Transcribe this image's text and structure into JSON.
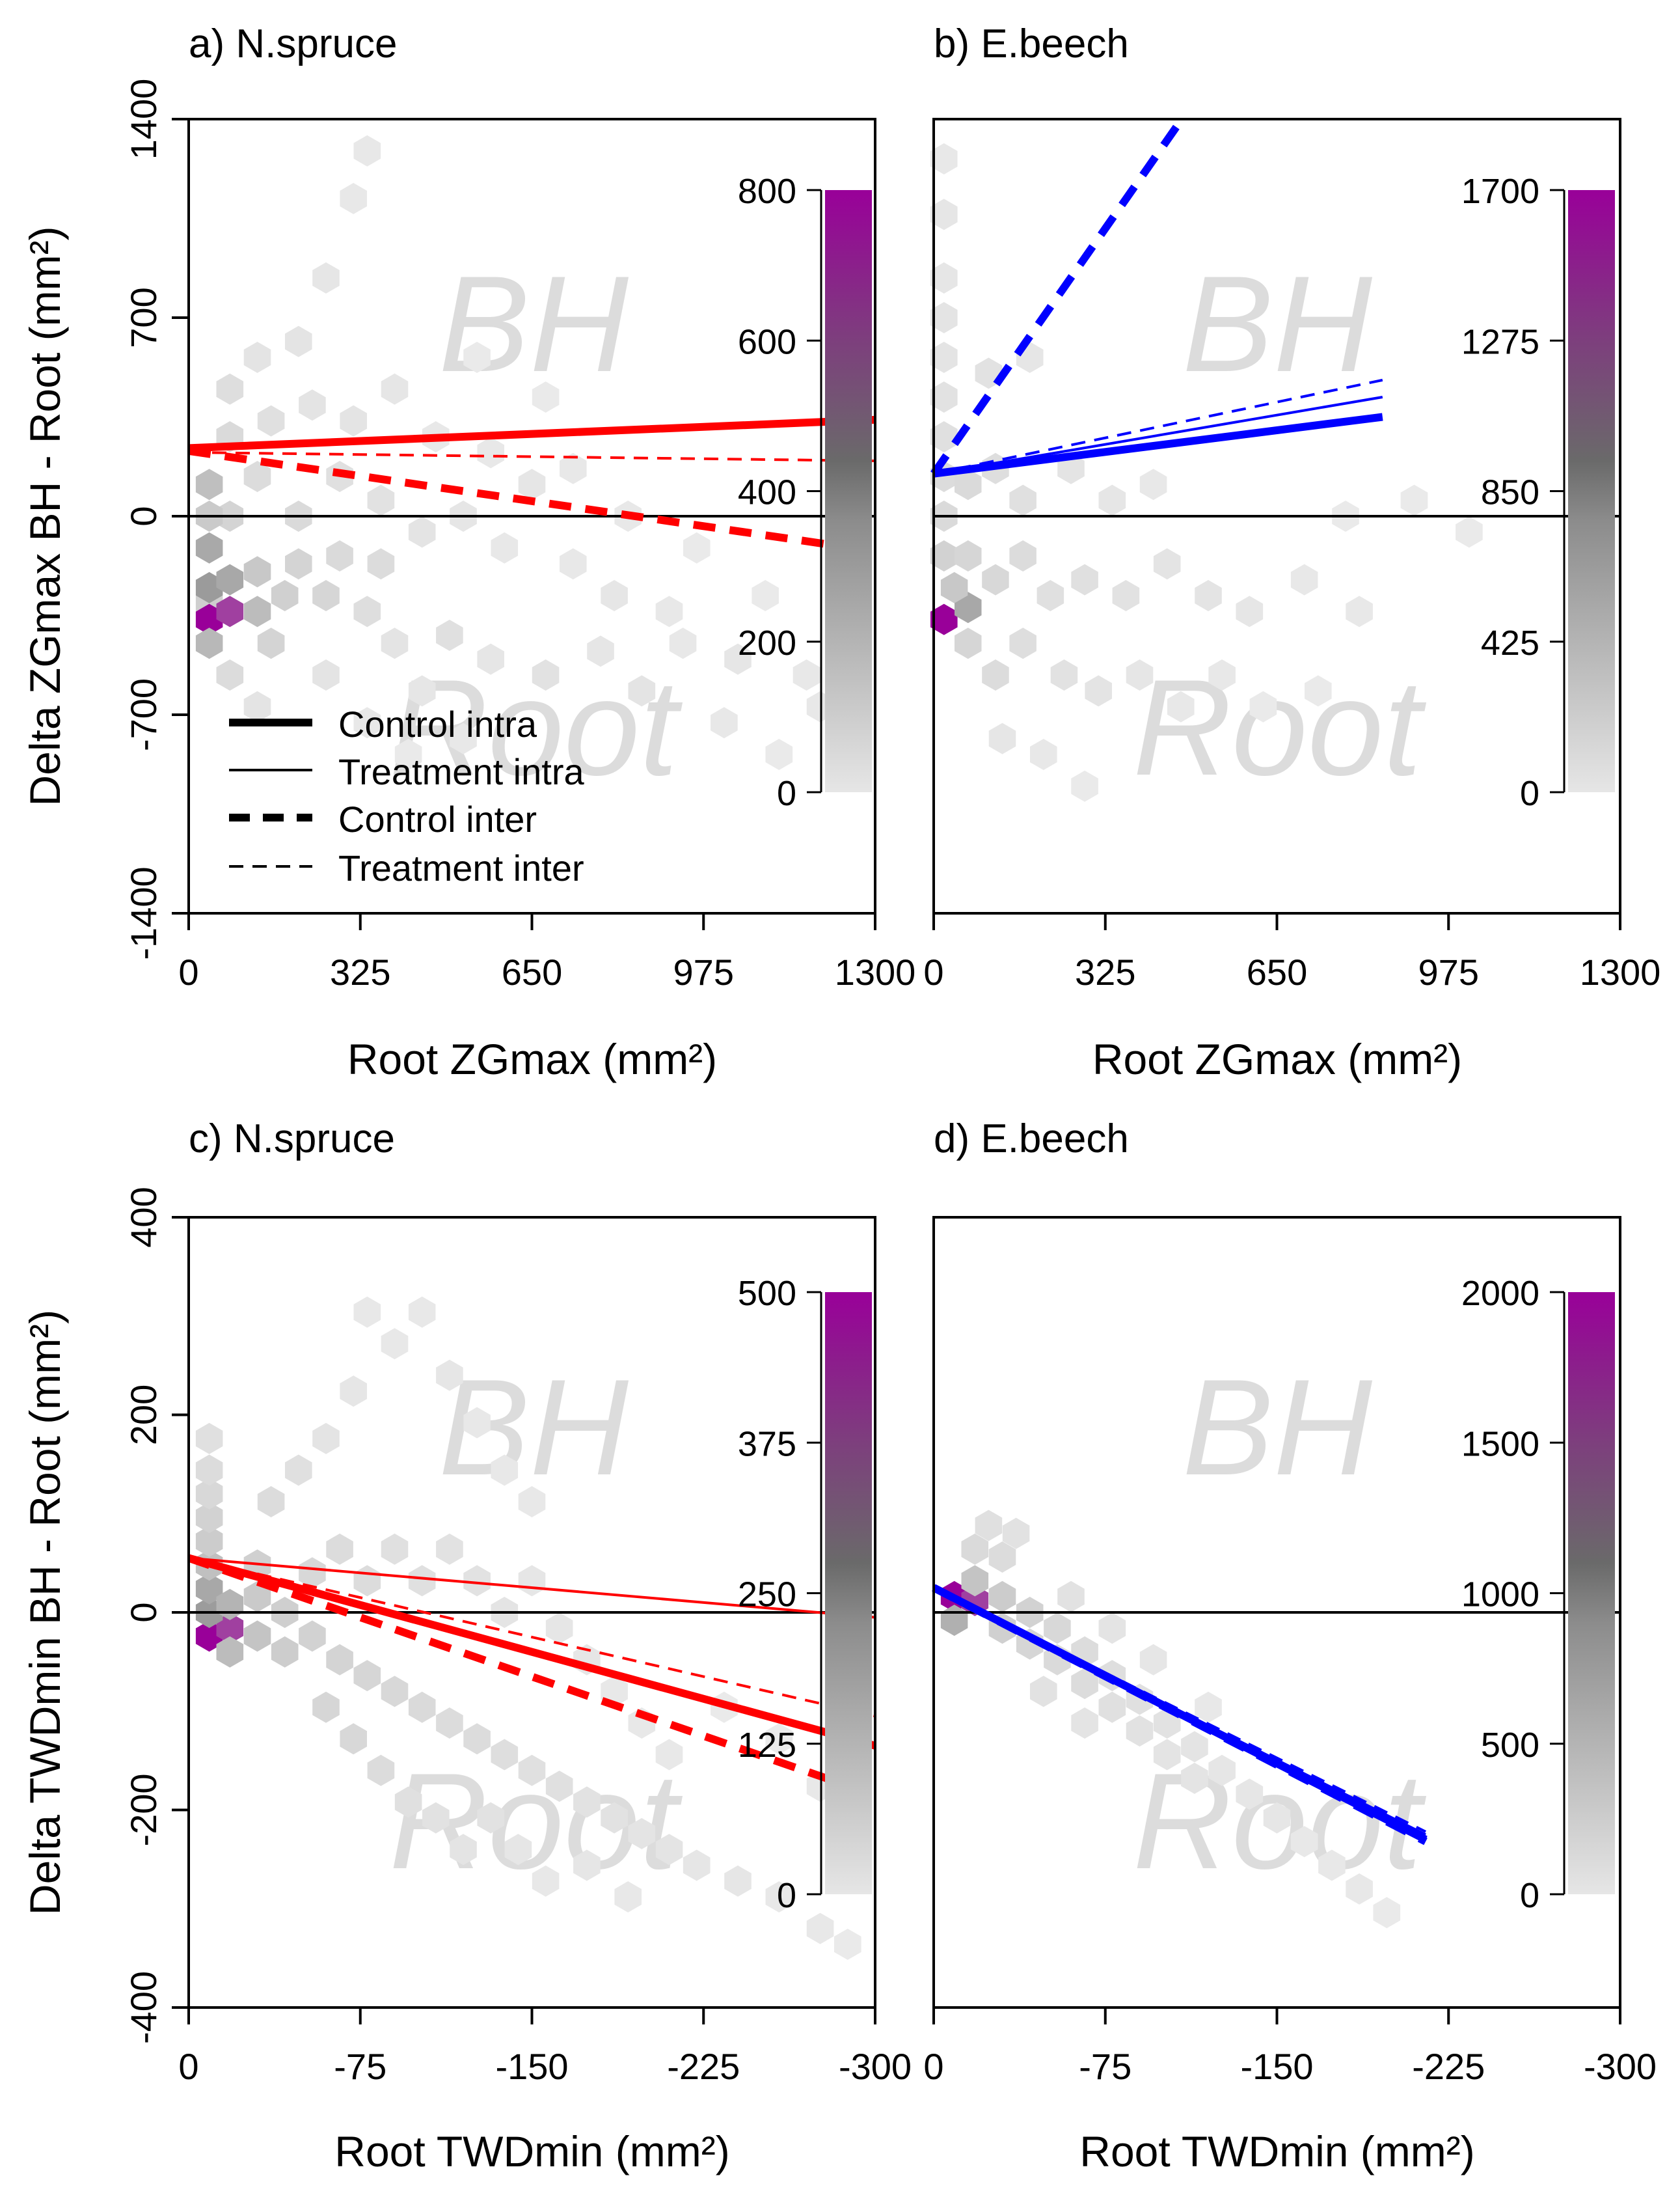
{
  "chart_data": [
    {
      "id": "a",
      "type": "scatter",
      "subtype": "hexbin-with-regression-lines",
      "title": "a) N.spruce",
      "watermark_top": "BH",
      "watermark_bottom": "Root",
      "xlabel": "Root ZGmax (mm²)",
      "ylabel": "Delta ZGmax BH - Root (mm²)",
      "xlim": [
        0,
        1300
      ],
      "ylim": [
        -1400,
        1400
      ],
      "xticks": [
        "0",
        "325",
        "650",
        "975",
        "1300"
      ],
      "yticks": [
        "-1400",
        "-700",
        "0",
        "700",
        "1400"
      ],
      "series": [
        {
          "name": "Control intra",
          "color": "#ff0000",
          "style": "thick-solid",
          "x": [
            0,
            1300
          ],
          "y": [
            240,
            340
          ]
        },
        {
          "name": "Treatment intra",
          "color": "#ff0000",
          "style": "thin-solid",
          "x": [
            0,
            1300
          ],
          "y": [
            240,
            340
          ]
        },
        {
          "name": "Control inter",
          "color": "#ff0000",
          "style": "thick-dashed",
          "x": [
            0,
            1250
          ],
          "y": [
            230,
            -110
          ]
        },
        {
          "name": "Treatment inter",
          "color": "#ff0000",
          "style": "thin-dashed",
          "x": [
            0,
            1300
          ],
          "y": [
            225,
            195
          ]
        }
      ],
      "colorbar": {
        "ticks": [
          "0",
          "200",
          "400",
          "600",
          "800"
        ],
        "max": 800
      },
      "legend": {
        "position": "bottom-left",
        "entries": [
          "Control intra",
          "Treatment intra",
          "Control inter",
          "Treatment inter"
        ]
      }
    },
    {
      "id": "b",
      "type": "scatter",
      "subtype": "hexbin-with-regression-lines",
      "title": "b) E.beech",
      "watermark_top": "BH",
      "watermark_bottom": "Root",
      "xlabel": "Root ZGmax (mm²)",
      "ylabel": "",
      "xlim": [
        0,
        1300
      ],
      "ylim": [
        -1400,
        1400
      ],
      "xticks": [
        "0",
        "325",
        "650",
        "975",
        "1300"
      ],
      "yticks": [],
      "series": [
        {
          "name": "Control intra",
          "color": "#0000ff",
          "style": "thick-solid",
          "x": [
            0,
            850
          ],
          "y": [
            150,
            350
          ]
        },
        {
          "name": "Treatment intra",
          "color": "#0000ff",
          "style": "thin-solid",
          "x": [
            0,
            850
          ],
          "y": [
            150,
            420
          ]
        },
        {
          "name": "Control inter",
          "color": "#0000ff",
          "style": "thick-dashed",
          "x": [
            0,
            470
          ],
          "y": [
            150,
            1400
          ]
        },
        {
          "name": "Treatment inter",
          "color": "#0000ff",
          "style": "thin-dashed",
          "x": [
            0,
            850
          ],
          "y": [
            150,
            480
          ]
        }
      ],
      "colorbar": {
        "ticks": [
          "0",
          "425",
          "850",
          "1275",
          "1700"
        ],
        "max": 1700
      }
    },
    {
      "id": "c",
      "type": "scatter",
      "subtype": "hexbin-with-regression-lines",
      "title": "c) N.spruce",
      "watermark_top": "BH",
      "watermark_bottom": "Root",
      "xlabel": "Root TWDmin (mm²)",
      "ylabel": "Delta TWDmin BH - Root (mm²)",
      "xlim": [
        0,
        -300
      ],
      "ylim": [
        -400,
        400
      ],
      "xticks": [
        "0",
        "-75",
        "-150",
        "-225",
        "-300"
      ],
      "yticks": [
        "-400",
        "-200",
        "0",
        "200",
        "400"
      ],
      "series": [
        {
          "name": "Control intra",
          "color": "#ff0000",
          "style": "thick-solid",
          "x": [
            0,
            -300
          ],
          "y": [
            55,
            -135
          ]
        },
        {
          "name": "Treatment intra",
          "color": "#ff0000",
          "style": "thin-solid",
          "x": [
            0,
            -300
          ],
          "y": [
            55,
            -5
          ]
        },
        {
          "name": "Control inter",
          "color": "#ff0000",
          "style": "thick-dashed",
          "x": [
            0,
            -300
          ],
          "y": [
            55,
            -185
          ]
        },
        {
          "name": "Treatment inter",
          "color": "#ff0000",
          "style": "thin-dashed",
          "x": [
            0,
            -300
          ],
          "y": [
            55,
            -105
          ]
        }
      ],
      "colorbar": {
        "ticks": [
          "0",
          "125",
          "250",
          "375",
          "500"
        ],
        "max": 500
      }
    },
    {
      "id": "d",
      "type": "scatter",
      "subtype": "hexbin-with-regression-lines",
      "title": "d) E.beech",
      "watermark_top": "BH",
      "watermark_bottom": "Root",
      "xlabel": "Root TWDmin (mm²)",
      "ylabel": "",
      "xlim": [
        0,
        -300
      ],
      "ylim": [
        -400,
        400
      ],
      "xticks": [
        "0",
        "-75",
        "-150",
        "-225",
        "-300"
      ],
      "yticks": [],
      "series": [
        {
          "name": "Control intra",
          "color": "#0000ff",
          "style": "thick-solid",
          "x": [
            0,
            -215
          ],
          "y": [
            25,
            -230
          ]
        },
        {
          "name": "Treatment intra",
          "color": "#0000ff",
          "style": "thin-solid",
          "x": [
            0,
            -215
          ],
          "y": [
            25,
            -225
          ]
        },
        {
          "name": "Control inter",
          "color": "#0000ff",
          "style": "thick-dashed",
          "x": [
            0,
            -215
          ],
          "y": [
            25,
            -232
          ]
        },
        {
          "name": "Treatment inter",
          "color": "#0000ff",
          "style": "thin-dashed",
          "x": [
            0,
            -215
          ],
          "y": [
            25,
            -222
          ]
        }
      ],
      "colorbar": {
        "ticks": [
          "0",
          "500",
          "1000",
          "1500",
          "2000"
        ],
        "max": 2000
      }
    }
  ]
}
